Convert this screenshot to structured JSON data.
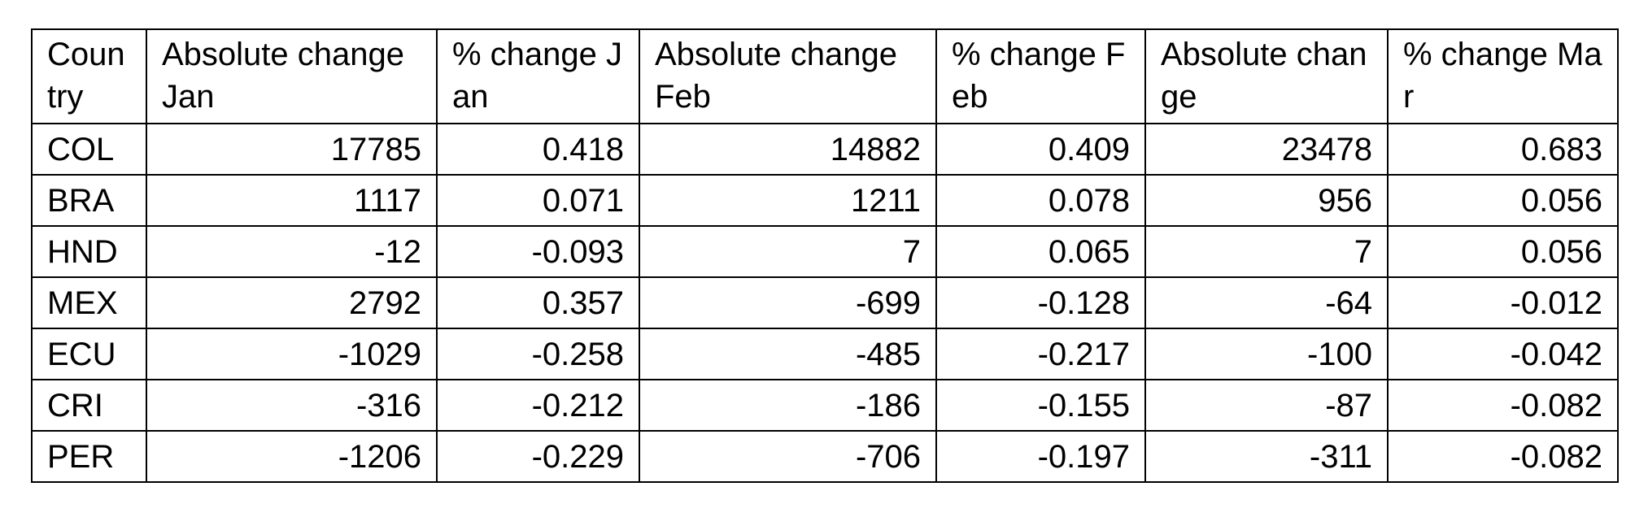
{
  "table": {
    "headers": [
      "Country",
      "Absolute change Jan",
      "% change Jan",
      "Absolute change Feb",
      "% change Feb",
      "Absolute change",
      "% change Mar"
    ],
    "rows": [
      [
        "COL",
        "17785",
        "0.418",
        "14882",
        "0.409",
        "23478",
        "0.683"
      ],
      [
        "BRA",
        "1117",
        "0.071",
        "1211",
        "0.078",
        "956",
        "0.056"
      ],
      [
        "HND",
        "-12",
        "-0.093",
        "7",
        "0.065",
        "7",
        "0.056"
      ],
      [
        "MEX",
        "2792",
        "0.357",
        "-699",
        "-0.128",
        "-64",
        "-0.012"
      ],
      [
        "ECU",
        "-1029",
        "-0.258",
        "-485",
        "-0.217",
        "-100",
        "-0.042"
      ],
      [
        "CRI",
        "-316",
        "-0.212",
        "-186",
        "-0.155",
        "-87",
        "-0.082"
      ],
      [
        "PER",
        "-1206",
        "-0.229",
        "-706",
        "-0.197",
        "-311",
        "-0.082"
      ]
    ]
  }
}
